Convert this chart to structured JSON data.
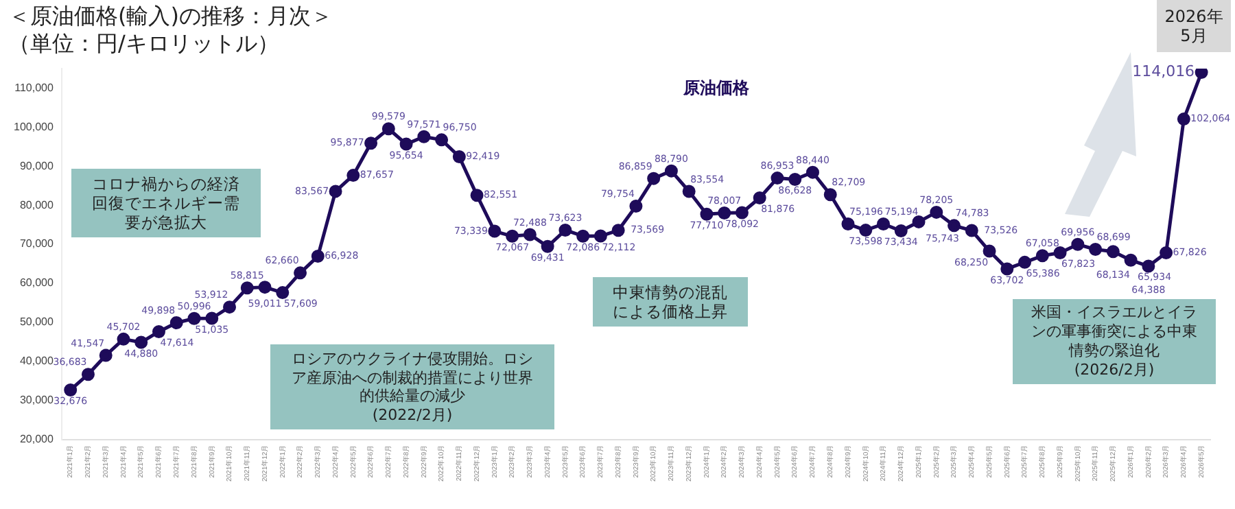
{
  "chart_data": {
    "type": "line",
    "title": "＜原油価格(輸入)の推移：月次＞",
    "subtitle": "（単位：円/キロリットル）",
    "categories": [
      "2021年1月",
      "2021年2月",
      "2021年3月",
      "2021年4月",
      "2021年5月",
      "2021年6月",
      "2021年7月",
      "2021年8月",
      "2021年9月",
      "2021年10月",
      "2021年11月",
      "2021年12月",
      "2022年1月",
      "2022年2月",
      "2022年3月",
      "2022年4月",
      "2022年5月",
      "2022年6月",
      "2022年7月",
      "2022年8月",
      "2022年9月",
      "2022年10月",
      "2022年11月",
      "2022年12月",
      "2023年1月",
      "2023年2月",
      "2023年3月",
      "2023年4月",
      "2023年5月",
      "2023年6月",
      "2023年7月",
      "2023年8月",
      "2023年9月",
      "2023年10月",
      "2023年11月",
      "2023年12月",
      "2024年1月",
      "2024年2月",
      "2024年3月",
      "2024年4月",
      "2024年5月",
      "2024年6月",
      "2024年7月",
      "2024年8月",
      "2024年9月",
      "2024年10月",
      "2024年11月",
      "2024年12月",
      "2025年1月",
      "2025年2月",
      "2025年3月",
      "2025年4月",
      "2025年5月",
      "2025年6月",
      "2025年7月",
      "2025年8月",
      "2025年9月",
      "2025年10月",
      "2025年11月",
      "2025年12月",
      "2026年1月",
      "2026年2月",
      "2026年3月",
      "2026年4月",
      "2026年5月"
    ],
    "series": [
      {
        "name": "原油価格",
        "color": "#1e0b5a",
        "values": [
          32676,
          36683,
          41547,
          45702,
          44880,
          47614,
          49898,
          50996,
          51035,
          53912,
          58815,
          59011,
          57609,
          62660,
          66928,
          83567,
          87657,
          95877,
          99579,
          95654,
          97571,
          96750,
          92419,
          82551,
          73339,
          72067,
          72488,
          69431,
          73623,
          72086,
          72112,
          73569,
          79754,
          86859,
          88790,
          83554,
          77710,
          78007,
          78092,
          81876,
          86953,
          86628,
          88440,
          82709,
          75196,
          73598,
          75194,
          73434,
          75743,
          78205,
          74783,
          73526,
          68250,
          63702,
          65386,
          67058,
          67823,
          69956,
          68699,
          68134,
          65934,
          64388,
          67826,
          102064,
          114016
        ]
      }
    ],
    "value_labels": [
      "32,676",
      "36,683",
      "41,547",
      "45,702",
      "44,880",
      "47,614",
      "49,898",
      "50,996",
      "51,035",
      "53,912",
      "58,815",
      "59,011",
      "57,609",
      "62,660",
      "66,928",
      "83,567",
      "87,657",
      "95,877",
      "99,579",
      "95,654",
      "97,571",
      "96,750",
      "92,419",
      "82,551",
      "73,339",
      "72,067",
      "72,488",
      "69,431",
      "73,623",
      "72,086",
      "72,112",
      "73,569",
      "79,754",
      "86,859",
      "88,790",
      "83,554",
      "77,710",
      "78,007",
      "78,092",
      "81,876",
      "86,953",
      "86,628",
      "88,440",
      "82,709",
      "75,196",
      "73,598",
      "75,194",
      "73,434",
      "75,743",
      "78,205",
      "74,783",
      "73,526",
      "68,250",
      "63,702",
      "65,386",
      "67,058",
      "67,823",
      "69,956",
      "68,699",
      "68,134",
      "65,934",
      "64,388",
      "67,826",
      "102,064",
      "114,016"
    ],
    "ylim": [
      20000,
      115000
    ],
    "yticks": [
      {
        "value": 20000,
        "label": "20,000"
      },
      {
        "value": 30000,
        "label": "30,000"
      },
      {
        "value": 40000,
        "label": "40,000"
      },
      {
        "value": 50000,
        "label": "50,000"
      },
      {
        "value": 60000,
        "label": "60,000"
      },
      {
        "value": 70000,
        "label": "70,000"
      },
      {
        "value": 80000,
        "label": "80,000"
      },
      {
        "value": 90000,
        "label": "90,000"
      },
      {
        "value": 100000,
        "label": "100,000"
      },
      {
        "value": 110000,
        "label": "110,000"
      }
    ],
    "grid": false,
    "marker": "circle",
    "line_style": "solid",
    "annotations": [
      "コロナ禍からの経済回復でエネルギー需要が急拡大",
      "ロシアのウクライナ侵攻開始。ロシア産原油への制裁的措置により世界的供給量の減少\n(2022/2月)",
      "中東情勢の混乱による価格上昇",
      "米国・イスラエルとイランの軍事衝突による中東情勢の緊迫化\n(2026/2月)",
      "2026年5月"
    ]
  }
}
